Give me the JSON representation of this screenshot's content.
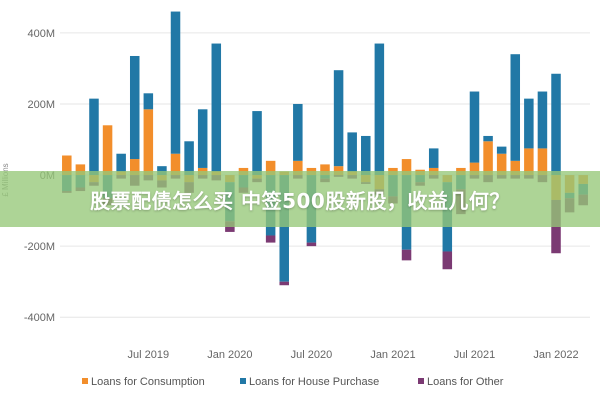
{
  "banner": {
    "text": "股票配债怎么买 中签500股新股，收益几何？"
  },
  "chart_data": {
    "type": "bar",
    "stacked": true,
    "title": "",
    "xlabel": "",
    "ylabel": "£ Millions",
    "ylim": [
      -450,
      470
    ],
    "y_ticks": [
      400,
      200,
      0,
      -200,
      -400
    ],
    "y_tick_labels": [
      "400M",
      "200M",
      "0M",
      "-200M",
      "-400M"
    ],
    "grid": true,
    "legend_position": "bottom",
    "x_ticks": [
      {
        "label": "Jul 2019",
        "index": 6
      },
      {
        "label": "Jan 2020",
        "index": 12
      },
      {
        "label": "Jul 2020",
        "index": 18
      },
      {
        "label": "Jan 2021",
        "index": 24
      },
      {
        "label": "Jul 2021",
        "index": 30
      },
      {
        "label": "Jan 2022",
        "index": 36
      }
    ],
    "colors": {
      "consumption": "#f28e2b",
      "house": "#2178a6",
      "other": "#7b3a73"
    },
    "series": [
      {
        "name": "Loans for Consumption",
        "key": "consumption",
        "values": [
          55,
          30,
          -20,
          140,
          10,
          45,
          185,
          -15,
          60,
          -20,
          20,
          10,
          -20,
          20,
          -10,
          40,
          10,
          40,
          20,
          30,
          25,
          10,
          -20,
          -40,
          20,
          45,
          15,
          20,
          -20,
          20,
          35,
          95,
          60,
          40,
          75,
          75,
          -70,
          -50,
          -25
        ]
      },
      {
        "name": "Loans for House Purchase",
        "key": "house",
        "values": [
          -45,
          -35,
          215,
          -65,
          50,
          290,
          45,
          25,
          400,
          95,
          165,
          360,
          -110,
          -35,
          180,
          -170,
          -300,
          160,
          -190,
          -10,
          270,
          110,
          110,
          370,
          -60,
          -210,
          -20,
          55,
          -195,
          -40,
          200,
          15,
          20,
          300,
          140,
          160,
          285,
          -15,
          -30
        ]
      },
      {
        "name": "Loans for Other",
        "key": "other",
        "values": [
          -5,
          -10,
          -10,
          -20,
          -10,
          -30,
          -15,
          -20,
          -10,
          -30,
          -10,
          -15,
          -30,
          -15,
          -10,
          -20,
          -10,
          -10,
          -10,
          -10,
          -5,
          -10,
          -5,
          -15,
          -20,
          -30,
          -10,
          -10,
          -50,
          -70,
          -10,
          -20,
          -10,
          -10,
          -10,
          -20,
          -150,
          -40,
          -30
        ]
      }
    ]
  }
}
